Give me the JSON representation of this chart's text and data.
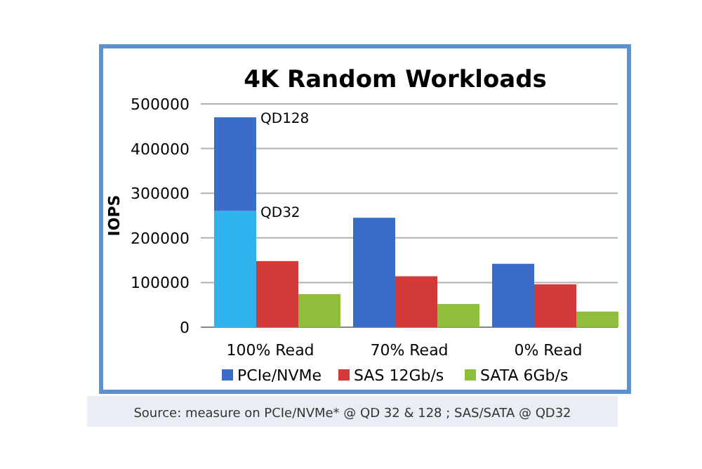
{
  "chart_data": {
    "type": "bar",
    "title": "4K Random Workloads",
    "ylabel": "IOPS",
    "categories": [
      "100% Read",
      "70% Read",
      "0% Read"
    ],
    "series": [
      {
        "color": "#2fb4ee",
        "values": [
          260000,
          null,
          null
        ]
      },
      {
        "name": "PCIe/NVMe",
        "color": "#3a6cc8",
        "values": [
          210000,
          245000,
          142000
        ],
        "base": [
          260000,
          0,
          0
        ]
      },
      {
        "name": "SAS 12Gb/s",
        "color": "#d23a3a",
        "values": [
          148000,
          114000,
          96000
        ]
      },
      {
        "name": "SATA 6Gb/s",
        "color": "#8fbf3a",
        "values": [
          74000,
          52000,
          35000
        ]
      }
    ],
    "ylim": [
      0,
      500000
    ],
    "yticks": [
      0,
      100000,
      200000,
      300000,
      400000,
      500000
    ],
    "grid": "y",
    "legend": "bottom",
    "annotations": [
      "QD128",
      "QD32",
      "Source: measure on PCIe/NVMe* @ QD 32 & 128 ; SAS/SATA @ QD32"
    ]
  }
}
